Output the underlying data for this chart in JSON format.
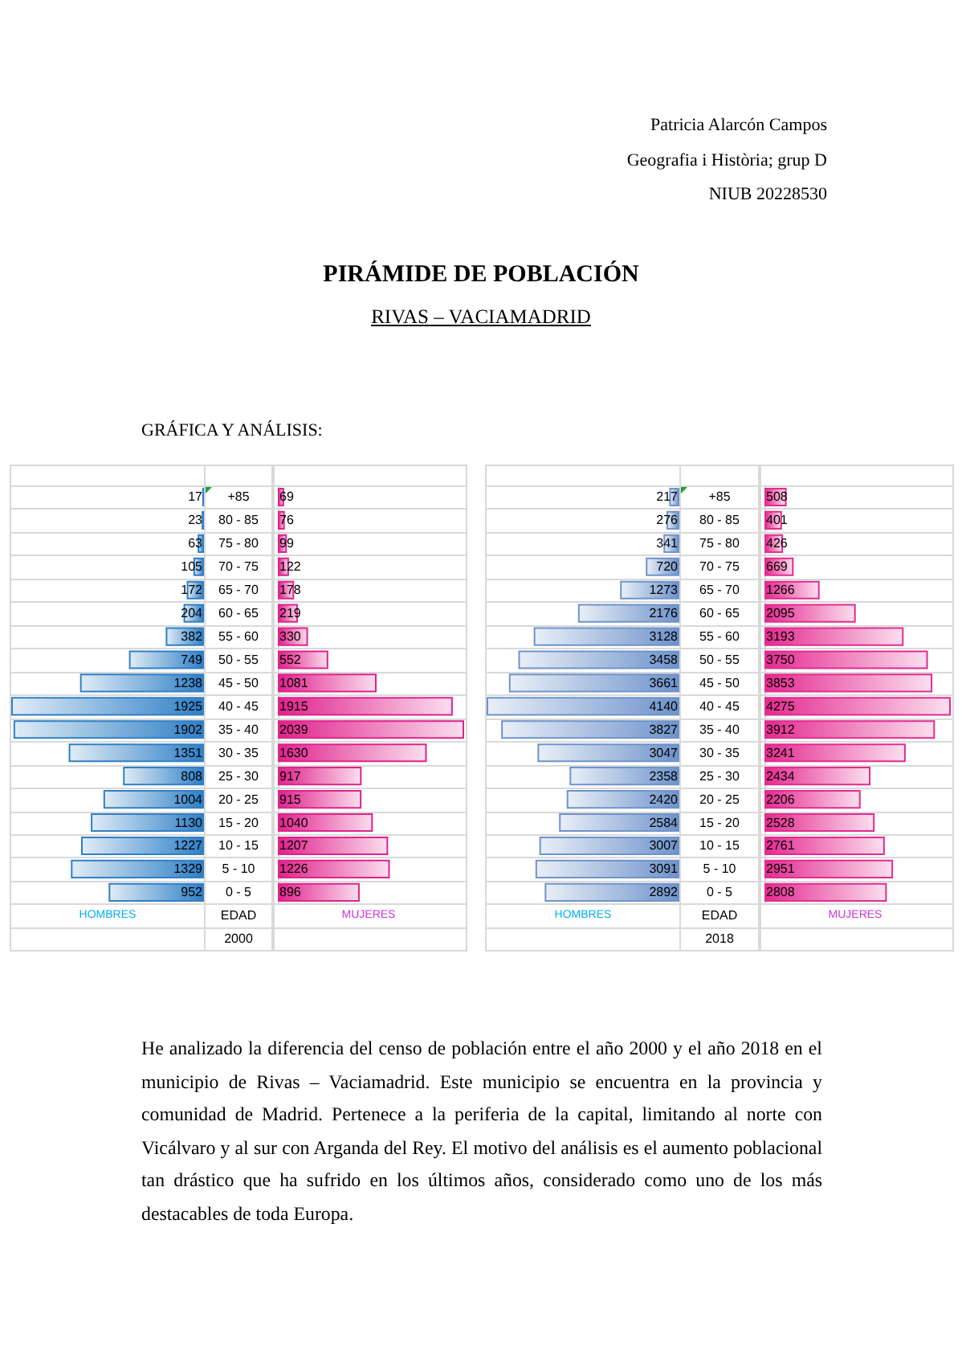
{
  "chart_data": [
    {
      "type": "other",
      "title": "PIRÁMIDE DE POBLACIÓN",
      "subtitle": "RIVAS – VACIAMADRID",
      "annotations": [
        "Patricia Alarcón Campos",
        "Geografia i Història; grup D",
        "NIUB 20228530",
        "GRÁFICA Y ANÁLISIS:"
      ]
    },
    {
      "type": "bar",
      "orientation": "horizontal",
      "xlabel": "HOMBRES",
      "ylabel": "EDAD",
      "annotations": [
        "2000"
      ],
      "categories": [
        "+85",
        "80 - 85",
        "75 - 80",
        "70 - 75",
        "65 - 70",
        "60 - 65",
        "55 - 60",
        "50 - 55",
        "45 - 50",
        "40 - 45",
        "35 - 40",
        "30 - 35",
        "25 - 30",
        "20 - 25",
        "15 - 20",
        "10 - 15",
        "5 - 10",
        "0 - 5"
      ],
      "values": [
        17,
        23,
        63,
        105,
        172,
        204,
        382,
        749,
        1238,
        1925,
        1902,
        1351,
        808,
        1004,
        1130,
        1227,
        1329,
        952
      ],
      "color": "#2f7fc6",
      "xlim": [
        1925,
        0
      ],
      "grid": "y",
      "data_labels": true,
      "tick_labels": "y"
    },
    {
      "type": "bar",
      "orientation": "horizontal",
      "xlabel": "MUJERES",
      "categories": [
        null,
        null,
        null,
        null,
        null,
        null,
        null,
        null,
        null,
        null,
        null,
        null,
        null,
        null,
        null,
        null,
        null,
        null
      ],
      "values": [
        69,
        76,
        99,
        122,
        178,
        219,
        330,
        552,
        1081,
        1915,
        2039,
        1630,
        917,
        915,
        1040,
        1207,
        1226,
        896
      ],
      "color": "#e0228c",
      "xlim": [
        0,
        2039
      ],
      "grid": "y",
      "data_labels": true
    },
    {
      "type": "bar",
      "orientation": "horizontal",
      "xlabel": "HOMBRES",
      "ylabel": "EDAD",
      "annotations": [
        "2018"
      ],
      "categories": [
        "+85",
        "80 - 85",
        "75 - 80",
        "70 - 75",
        "65 - 70",
        "60 - 65",
        "55 - 60",
        "50 - 55",
        "45 - 50",
        "40 - 45",
        "35 - 40",
        "30 - 35",
        "25 - 30",
        "20 - 25",
        "15 - 20",
        "10 - 15",
        "5 - 10",
        "0 - 5"
      ],
      "values": [
        217,
        276,
        341,
        720,
        1273,
        2176,
        3128,
        3458,
        3661,
        4140,
        3827,
        3047,
        2358,
        2420,
        2584,
        3007,
        3091,
        2892
      ],
      "color": "#6e93cb",
      "xlim": [
        4140,
        0
      ],
      "grid": "y",
      "data_labels": true,
      "tick_labels": "y"
    },
    {
      "type": "bar",
      "orientation": "horizontal",
      "xlabel": "MUJERES",
      "categories": [
        null,
        null,
        null,
        null,
        null,
        null,
        null,
        null,
        null,
        null,
        null,
        null,
        null,
        null,
        null,
        null,
        null,
        null
      ],
      "values": [
        508,
        401,
        426,
        669,
        1266,
        2095,
        3193,
        3750,
        3853,
        4275,
        3912,
        3241,
        2434,
        2206,
        2528,
        2761,
        2951,
        2808
      ],
      "color": "#e42a90",
      "xlim": [
        0,
        4275
      ],
      "grid": "y",
      "data_labels": true
    },
    {
      "type": "other",
      "annotations": [
        "He analizado la diferencia del censo de población entre el año 2000 y el año 2018 en el municipio de Rivas – Vaciamadrid. Este municipio se encuentra en la provincia y comunidad de Madrid. Pertenece a la periferia de la capital, limitando al norte con Vicálvaro y al sur con Arganda del Rey. El motivo del análisis es el aumento poblacional tan drástico que ha sufrido en los últimos años, considerado como uno de los más destacables de toda Europa."
      ]
    }
  ]
}
